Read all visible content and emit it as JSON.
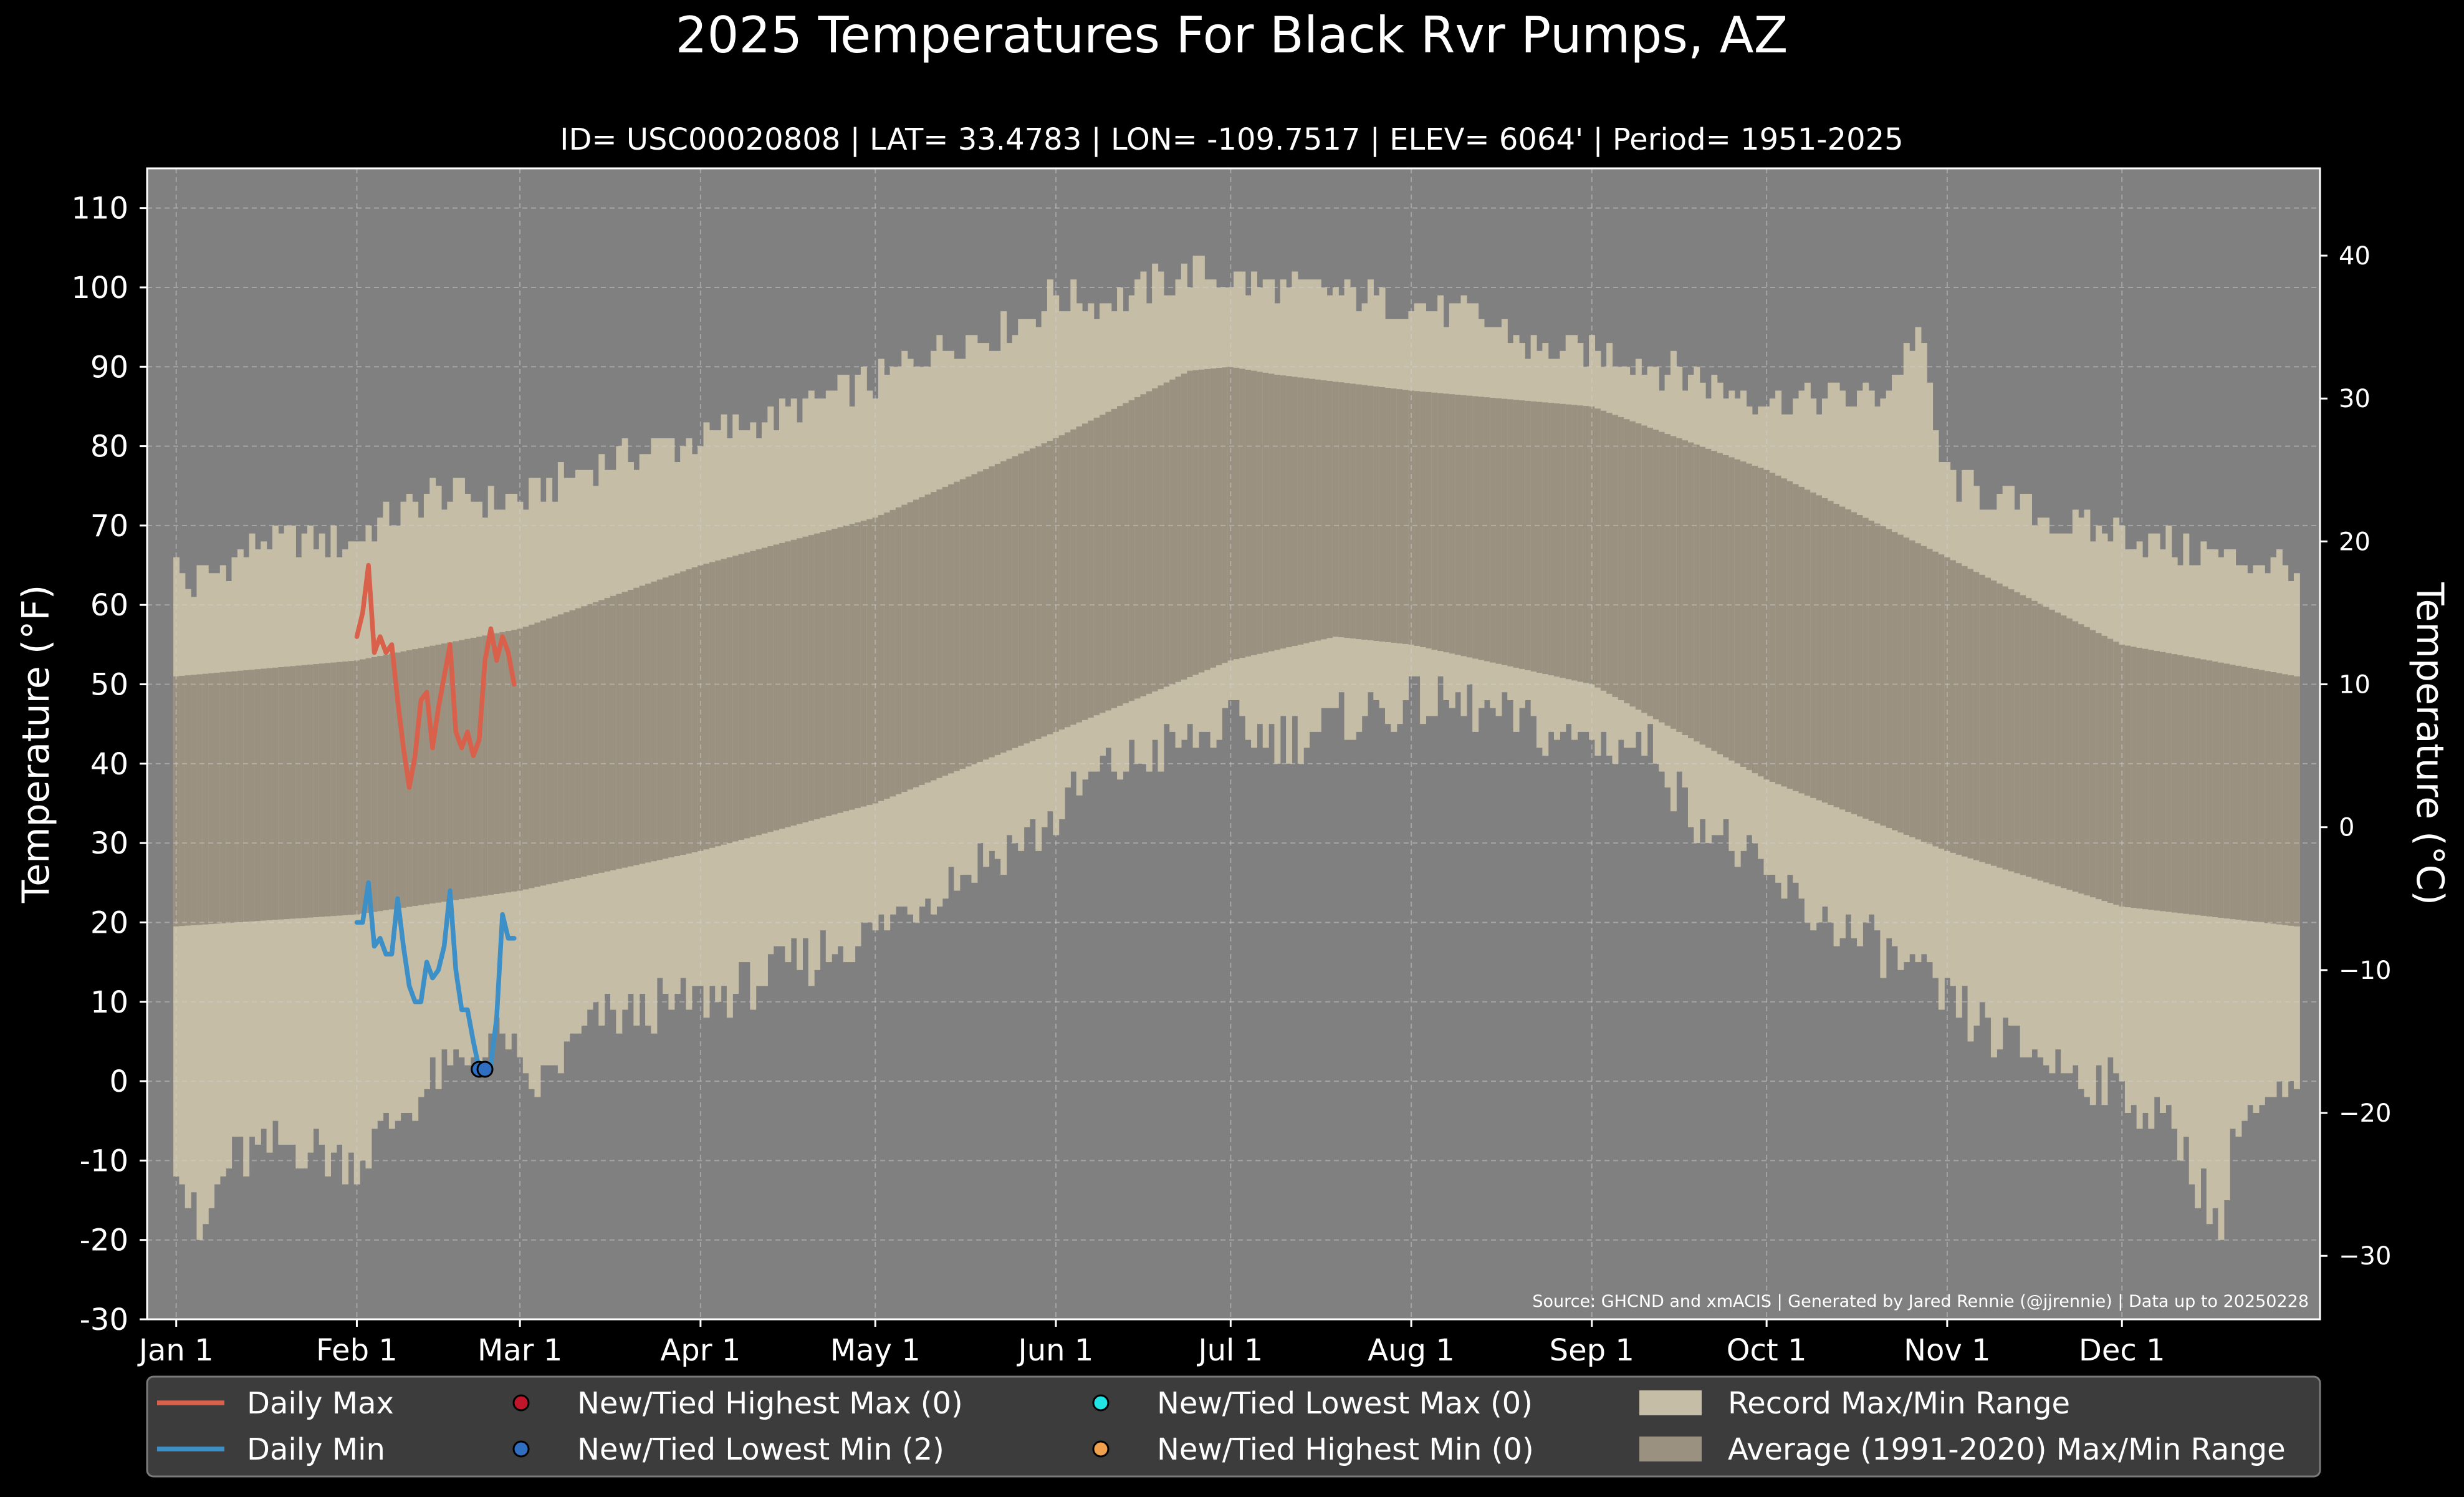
{
  "chart_data": {
    "type": "area",
    "title": "2025 Temperatures For Black Rvr Pumps, AZ",
    "subtitle": "ID= USC00020808 | LAT= 33.4783 | LON= -109.7517 | ELEV= 6064' | Period= 1951-2025",
    "ylabel": "Temperature ($^\\circ$F)",
    "ylabel_display": "Temperature (°F)",
    "y2label_display": "Temperature (°C)",
    "source": "Source: GHCND and xmACIS | Generated by Jared Rennie (@jjrennie) | Data up to 20250228",
    "ylim": [
      -30,
      115
    ],
    "y2lim_c": [
      -34.44,
      46.11
    ],
    "y_ticks": [
      -30,
      -20,
      -10,
      0,
      10,
      20,
      30,
      40,
      50,
      60,
      70,
      80,
      90,
      100,
      110
    ],
    "y_tick_labels": [
      "-30",
      "-20",
      "-10",
      "0",
      "10",
      "20",
      "30",
      "40",
      "50",
      "60",
      "70",
      "80",
      "90",
      "100",
      "110"
    ],
    "y2_ticks": [
      -30,
      -20,
      -10,
      0,
      10,
      20,
      30,
      40
    ],
    "y2_tick_labels": [
      "−30",
      "−20",
      "−10",
      "0",
      "10",
      "20",
      "30",
      "40"
    ],
    "xlim_days": [
      -4,
      369
    ],
    "x_ticks": [
      {
        "day": 1,
        "label": "Jan 1"
      },
      {
        "day": 32,
        "label": "Feb 1"
      },
      {
        "day": 60,
        "label": "Mar 1"
      },
      {
        "day": 91,
        "label": "Apr 1"
      },
      {
        "day": 121,
        "label": "May 1"
      },
      {
        "day": 152,
        "label": "Jun 1"
      },
      {
        "day": 182,
        "label": "Jul 1"
      },
      {
        "day": 213,
        "label": "Aug 1"
      },
      {
        "day": 244,
        "label": "Sep 1"
      },
      {
        "day": 274,
        "label": "Oct 1"
      },
      {
        "day": 305,
        "label": "Nov 1"
      },
      {
        "day": 335,
        "label": "Dec 1"
      }
    ],
    "grid": true,
    "colors": {
      "background": "#000000",
      "plot_bg": "#808080",
      "record_range": "#c5bda6",
      "normal_range": "#9a9180",
      "daily_max": "#d9604a",
      "daily_min": "#3d8fc7",
      "new_highest_max": "#c0162c",
      "new_lowest_min": "#2f6ec0",
      "new_lowest_max": "#21e5e5",
      "new_highest_min": "#f1a14e",
      "legend_bg": "#3c3c3c"
    },
    "record_max": {
      "day": [
        1,
        3,
        16,
        31,
        45,
        60,
        74,
        91,
        105,
        121,
        130,
        145,
        152,
        160,
        165,
        175,
        182,
        190,
        200,
        213,
        225,
        235,
        244,
        255,
        265,
        274,
        285,
        295,
        300,
        304,
        305,
        315,
        325,
        335,
        345,
        355,
        365
      ],
      "value": [
        65,
        62,
        68,
        68,
        74,
        73,
        78,
        81,
        84,
        88,
        92,
        95,
        99,
        98,
        99,
        102,
        101,
        100,
        99,
        98,
        96,
        92,
        92,
        90,
        88,
        86,
        86,
        87,
        95,
        78,
        76,
        73,
        70,
        69,
        67,
        66,
        65
      ]
    },
    "record_min": {
      "day": [
        1,
        5,
        10,
        20,
        32,
        45,
        58,
        61,
        74,
        91,
        105,
        121,
        135,
        150,
        160,
        175,
        182,
        190,
        200,
        213,
        225,
        235,
        244,
        255,
        260,
        270,
        280,
        295,
        305,
        315,
        325,
        335,
        345,
        352,
        355,
        365
      ],
      "value": [
        -9,
        -20,
        -10,
        -8,
        -10,
        0,
        6,
        -2,
        8,
        10,
        14,
        19,
        26,
        32,
        39,
        43,
        45,
        43,
        45,
        48,
        47,
        44,
        43,
        42,
        35,
        28,
        22,
        16,
        10,
        5,
        2,
        -1,
        -7,
        -19,
        -4,
        -2
      ]
    },
    "normal_max": {
      "day": [
        1,
        32,
        60,
        91,
        121,
        152,
        175,
        182,
        190,
        213,
        244,
        274,
        305,
        335,
        365
      ],
      "value": [
        51,
        53,
        57,
        65,
        71,
        81,
        89.5,
        90,
        89,
        87,
        85,
        77,
        66,
        55,
        51
      ]
    },
    "normal_min": {
      "day": [
        1,
        32,
        60,
        91,
        121,
        152,
        182,
        200,
        213,
        244,
        274,
        305,
        335,
        365
      ],
      "value": [
        19.5,
        21,
        24,
        29,
        35,
        44,
        53,
        56,
        55,
        50,
        38,
        29,
        22,
        19.5
      ]
    },
    "series": [
      {
        "name": "Daily Max",
        "day": [
          32,
          33,
          34,
          35,
          36,
          37,
          38,
          39,
          40,
          41,
          42,
          43,
          44,
          45,
          46,
          47,
          48,
          49,
          50,
          51,
          52,
          53,
          54,
          55,
          56,
          57,
          58,
          59
        ],
        "values": [
          56,
          59,
          65,
          54,
          56,
          54,
          55,
          48,
          42,
          37,
          41,
          48,
          49,
          42,
          47,
          51,
          55,
          44,
          42,
          44,
          41,
          43,
          53,
          57,
          53,
          56,
          54,
          50
        ]
      },
      {
        "name": "Daily Min",
        "day": [
          32,
          33,
          34,
          35,
          36,
          37,
          38,
          39,
          40,
          41,
          42,
          43,
          44,
          45,
          46,
          47,
          48,
          49,
          50,
          51,
          52,
          53,
          54,
          55,
          56,
          57,
          58,
          59
        ],
        "values": [
          20,
          20,
          25,
          17,
          18,
          16,
          16,
          23,
          17,
          12,
          10,
          10,
          15,
          13,
          14,
          17,
          24,
          14,
          9,
          9,
          5,
          1.5,
          1.5,
          2,
          8,
          21,
          18,
          18
        ]
      }
    ],
    "record_markers": [
      {
        "kind": "new_lowest_min",
        "day": 53,
        "value": 1.5
      },
      {
        "kind": "new_lowest_min",
        "day": 54,
        "value": 1.5
      }
    ],
    "legend": {
      "placement": "bottom",
      "items": [
        {
          "kind": "line",
          "color_key": "daily_max",
          "label": "Daily Max"
        },
        {
          "kind": "line",
          "color_key": "daily_min",
          "label": "Daily Min"
        },
        {
          "kind": "marker",
          "color_key": "new_highest_max",
          "label": "New/Tied Highest Max (0)"
        },
        {
          "kind": "marker",
          "color_key": "new_lowest_min",
          "label": "New/Tied Lowest Min (2)"
        },
        {
          "kind": "marker",
          "color_key": "new_lowest_max",
          "label": "New/Tied Lowest Max (0)"
        },
        {
          "kind": "marker",
          "color_key": "new_highest_min",
          "label": "New/Tied Highest Min (0)"
        },
        {
          "kind": "patch",
          "color_key": "record_range",
          "label": "Record Max/Min Range"
        },
        {
          "kind": "patch",
          "color_key": "normal_range",
          "label": "Average (1991-2020) Max/Min Range"
        }
      ]
    }
  }
}
